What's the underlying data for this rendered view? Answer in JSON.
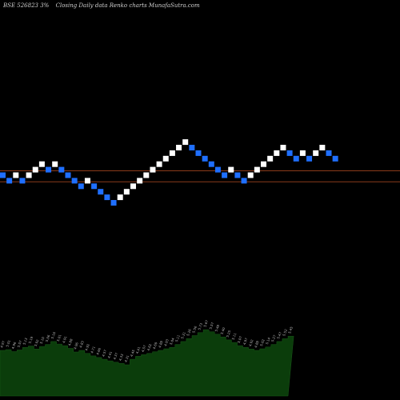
{
  "header": {
    "symbol": "BSE 526823 3%",
    "chart_desc": "Closing Daily data  Renko  charts MunafaSutra.com"
  },
  "colors": {
    "background": "#000000",
    "up_brick": "#ffffff",
    "down_brick": "#1f6fff",
    "reference_line": "#8b3a1a",
    "volume_fill": "#0b3d0b"
  },
  "chart_data": [
    {
      "type": "renko",
      "bricks": [
        {
          "dir": "down",
          "level": 5.03
        },
        {
          "dir": "down",
          "level": 4.88
        },
        {
          "dir": "up",
          "level": 5.03
        },
        {
          "dir": "down",
          "level": 4.88
        },
        {
          "dir": "up",
          "level": 5.03
        },
        {
          "dir": "up",
          "level": 5.18
        },
        {
          "dir": "up",
          "level": 5.33
        },
        {
          "dir": "down",
          "level": 5.18
        },
        {
          "dir": "up",
          "level": 5.33
        },
        {
          "dir": "down",
          "level": 5.18
        },
        {
          "dir": "down",
          "level": 5.03
        },
        {
          "dir": "down",
          "level": 4.88
        },
        {
          "dir": "down",
          "level": 4.73
        },
        {
          "dir": "up",
          "level": 4.88
        },
        {
          "dir": "down",
          "level": 4.73
        },
        {
          "dir": "down",
          "level": 4.58
        },
        {
          "dir": "down",
          "level": 4.43
        },
        {
          "dir": "down",
          "level": 4.28
        },
        {
          "dir": "up",
          "level": 4.43
        },
        {
          "dir": "up",
          "level": 4.58
        },
        {
          "dir": "up",
          "level": 4.73
        },
        {
          "dir": "up",
          "level": 4.88
        },
        {
          "dir": "up",
          "level": 5.03
        },
        {
          "dir": "up",
          "level": 5.18
        },
        {
          "dir": "up",
          "level": 5.33
        },
        {
          "dir": "up",
          "level": 5.48
        },
        {
          "dir": "up",
          "level": 5.63
        },
        {
          "dir": "up",
          "level": 5.78
        },
        {
          "dir": "up",
          "level": 5.93
        },
        {
          "dir": "down",
          "level": 5.78
        },
        {
          "dir": "down",
          "level": 5.63
        },
        {
          "dir": "down",
          "level": 5.48
        },
        {
          "dir": "down",
          "level": 5.33
        },
        {
          "dir": "down",
          "level": 5.18
        },
        {
          "dir": "down",
          "level": 5.03
        },
        {
          "dir": "up",
          "level": 5.18
        },
        {
          "dir": "down",
          "level": 5.03
        },
        {
          "dir": "down",
          "level": 4.88
        },
        {
          "dir": "up",
          "level": 5.03
        },
        {
          "dir": "up",
          "level": 5.18
        },
        {
          "dir": "up",
          "level": 5.33
        },
        {
          "dir": "up",
          "level": 5.48
        },
        {
          "dir": "up",
          "level": 5.63
        },
        {
          "dir": "up",
          "level": 5.78
        },
        {
          "dir": "down",
          "level": 5.63
        },
        {
          "dir": "down",
          "level": 5.48
        },
        {
          "dir": "up",
          "level": 5.63
        },
        {
          "dir": "down",
          "level": 5.48
        },
        {
          "dir": "up",
          "level": 5.63
        },
        {
          "dir": "up",
          "level": 5.78
        },
        {
          "dir": "down",
          "level": 5.63
        },
        {
          "dir": "down",
          "level": 5.48
        }
      ],
      "reference_lines": [
        4.85,
        5.15
      ],
      "price_range": [
        4.0,
        7.8
      ]
    },
    {
      "type": "area",
      "x_count": 52,
      "values": [
        4.88,
        4.92,
        4.82,
        4.9,
        5.03,
        5.1,
        4.95,
        5.08,
        5.18,
        5.33,
        5.2,
        5.12,
        4.98,
        4.8,
        4.88,
        4.73,
        4.6,
        4.52,
        4.43,
        4.35,
        4.28,
        4.22,
        4.15,
        4.43,
        4.58,
        4.66,
        4.73,
        4.81,
        4.88,
        4.96,
        5.03,
        5.18,
        5.33,
        5.48,
        5.63,
        5.78,
        5.93,
        5.82,
        5.7,
        5.56,
        5.41,
        5.28,
        5.12,
        5.03,
        4.95,
        4.88,
        4.96,
        5.05,
        5.18,
        5.33,
        5.47,
        5.6
      ],
      "labels": [
        "4.97",
        "5.01",
        "4.96",
        "5.07",
        "5.13",
        "5.19",
        "5.02",
        "5.10",
        "5.06",
        "5.16",
        "5.01",
        "4.91",
        "4.88",
        "4.96",
        "4.83",
        "4.92",
        "4.71",
        "4.66",
        "4.57",
        "4.41",
        "4.37",
        "4.33",
        "4.31",
        "4.45",
        "4.41",
        "4.57",
        "4.62",
        "4.69",
        "4.88",
        "4.93",
        "5.04",
        "5.11",
        "5.31",
        "5.26",
        "5.56",
        "5.73",
        "5.67",
        "5.57",
        "5.48",
        "5.40",
        "5.25",
        "5.11",
        "5.07",
        "4.97",
        "4.92",
        "4.88",
        "5.02",
        "5.14",
        "5.27",
        "5.47",
        "5.52",
        "5.45"
      ]
    }
  ]
}
